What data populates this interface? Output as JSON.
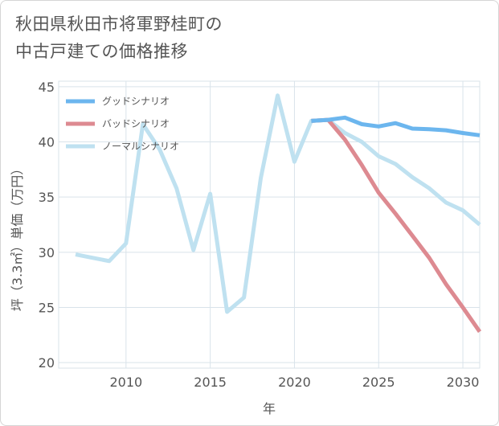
{
  "title": {
    "line1": "秋田県秋田市将軍野桂町の",
    "line2": "中古戸建ての価格推移"
  },
  "colors": {
    "good": "#6cb6ee",
    "bad": "#dd8a91",
    "normal": "#bfe1f0",
    "grid": "#d9e3ea",
    "axis": "#555555"
  },
  "chart_data": {
    "type": "line",
    "title": "秋田県秋田市将軍野桂町の中古戸建ての価格推移",
    "xlabel": "年",
    "ylabel": "坪（3.3㎡）単価（万円）",
    "xlim": [
      2006,
      2031
    ],
    "ylim": [
      19.5,
      45.5
    ],
    "x_ticks": [
      2010,
      2015,
      2020,
      2025,
      2030
    ],
    "y_ticks": [
      20,
      25,
      30,
      35,
      40,
      45
    ],
    "legend_position": "top-left",
    "series": [
      {
        "name": "グッドシナリオ",
        "color_key": "good",
        "points": [
          [
            2021,
            41.9
          ],
          [
            2022,
            42.0
          ],
          [
            2023,
            42.2
          ],
          [
            2024,
            41.6
          ],
          [
            2025,
            41.4
          ],
          [
            2026,
            41.7
          ],
          [
            2027,
            41.2
          ],
          [
            2028,
            41.15
          ],
          [
            2029,
            41.05
          ],
          [
            2030,
            40.8
          ],
          [
            2031,
            40.6
          ]
        ]
      },
      {
        "name": "バッドシナリオ",
        "color_key": "bad",
        "points": [
          [
            2021,
            41.9
          ],
          [
            2022,
            42.0
          ],
          [
            2023,
            40.2
          ],
          [
            2024,
            37.9
          ],
          [
            2025,
            35.4
          ],
          [
            2026,
            33.5
          ],
          [
            2027,
            31.5
          ],
          [
            2028,
            29.5
          ],
          [
            2029,
            27.1
          ],
          [
            2030,
            25.0
          ],
          [
            2031,
            22.8
          ]
        ]
      },
      {
        "name": "ノーマルシナリオ",
        "color_key": "normal",
        "points": [
          [
            2007,
            29.8
          ],
          [
            2008,
            29.5
          ],
          [
            2009,
            29.2
          ],
          [
            2010,
            30.8
          ],
          [
            2011,
            41.6
          ],
          [
            2012,
            39.3
          ],
          [
            2013,
            35.8
          ],
          [
            2014,
            30.2
          ],
          [
            2015,
            35.3
          ],
          [
            2016,
            24.6
          ],
          [
            2017,
            25.9
          ],
          [
            2018,
            36.7
          ],
          [
            2019,
            44.2
          ],
          [
            2020,
            38.2
          ],
          [
            2021,
            41.9
          ],
          [
            2022,
            42.0
          ],
          [
            2023,
            40.8
          ],
          [
            2024,
            40.0
          ],
          [
            2025,
            38.7
          ],
          [
            2026,
            38.0
          ],
          [
            2027,
            36.8
          ],
          [
            2028,
            35.8
          ],
          [
            2029,
            34.5
          ],
          [
            2030,
            33.8
          ],
          [
            2031,
            32.5
          ]
        ]
      }
    ]
  }
}
